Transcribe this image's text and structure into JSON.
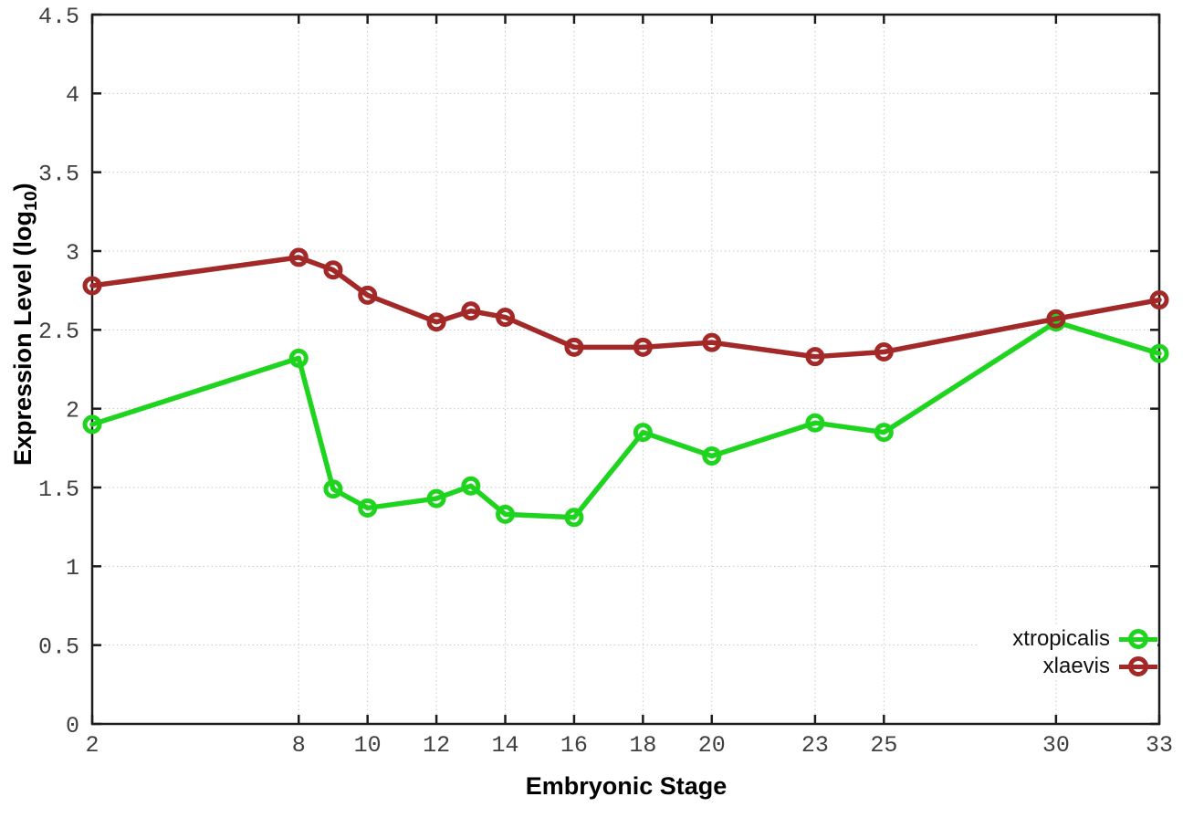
{
  "chart_data": {
    "type": "line",
    "title": "",
    "xlabel": "Embryonic Stage",
    "ylabel": {
      "main": "Expression Level (log",
      "sub": "10",
      "end": ")"
    },
    "x_axis": {
      "min": 2,
      "max": 33,
      "ticks": [
        {
          "v": 2,
          "label": "2"
        },
        {
          "v": 8,
          "label": "8"
        },
        {
          "v": 10,
          "label": "10"
        },
        {
          "v": 12,
          "label": "12"
        },
        {
          "v": 14,
          "label": "14"
        },
        {
          "v": 16,
          "label": "16"
        },
        {
          "v": 18,
          "label": "18"
        },
        {
          "v": 20,
          "label": "20"
        },
        {
          "v": 23,
          "label": "23"
        },
        {
          "v": 25,
          "label": "25"
        },
        {
          "v": 30,
          "label": "30"
        },
        {
          "v": 33,
          "label": "33"
        }
      ]
    },
    "y_axis": {
      "min": 0,
      "max": 4.5,
      "ticks": [
        {
          "v": 0,
          "label": "0"
        },
        {
          "v": 0.5,
          "label": "0.5"
        },
        {
          "v": 1,
          "label": "1"
        },
        {
          "v": 1.5,
          "label": "1.5"
        },
        {
          "v": 2,
          "label": "2"
        },
        {
          "v": 2.5,
          "label": "2.5"
        },
        {
          "v": 3,
          "label": "3"
        },
        {
          "v": 3.5,
          "label": "3.5"
        },
        {
          "v": 4,
          "label": "4"
        },
        {
          "v": 4.5,
          "label": "4.5"
        }
      ]
    },
    "x": [
      2,
      8,
      9,
      10,
      12,
      13,
      14,
      16,
      18,
      20,
      23,
      25,
      30,
      33
    ],
    "series": [
      {
        "name": "xtropicalis",
        "color": "#1fd41f",
        "marker": "open-circle",
        "values": [
          1.9,
          2.32,
          1.49,
          1.37,
          1.43,
          1.51,
          1.33,
          1.31,
          1.85,
          1.7,
          1.91,
          1.85,
          2.55,
          2.35
        ]
      },
      {
        "name": "xlaevis",
        "color": "#a32929",
        "marker": "open-circle",
        "values": [
          2.78,
          2.96,
          2.88,
          2.72,
          2.55,
          2.62,
          2.58,
          2.39,
          2.39,
          2.42,
          2.33,
          2.36,
          2.57,
          2.69
        ]
      }
    ],
    "legend": {
      "position": "bottom-right",
      "entries": [
        "xtropicalis",
        "xlaevis"
      ]
    },
    "grid": true,
    "colors": {
      "background": "#ffffff",
      "border": "#1c1c1c",
      "grid": "#c8c8c8",
      "tick_label": "#3f3f3f",
      "axis_title": "#000000"
    }
  }
}
